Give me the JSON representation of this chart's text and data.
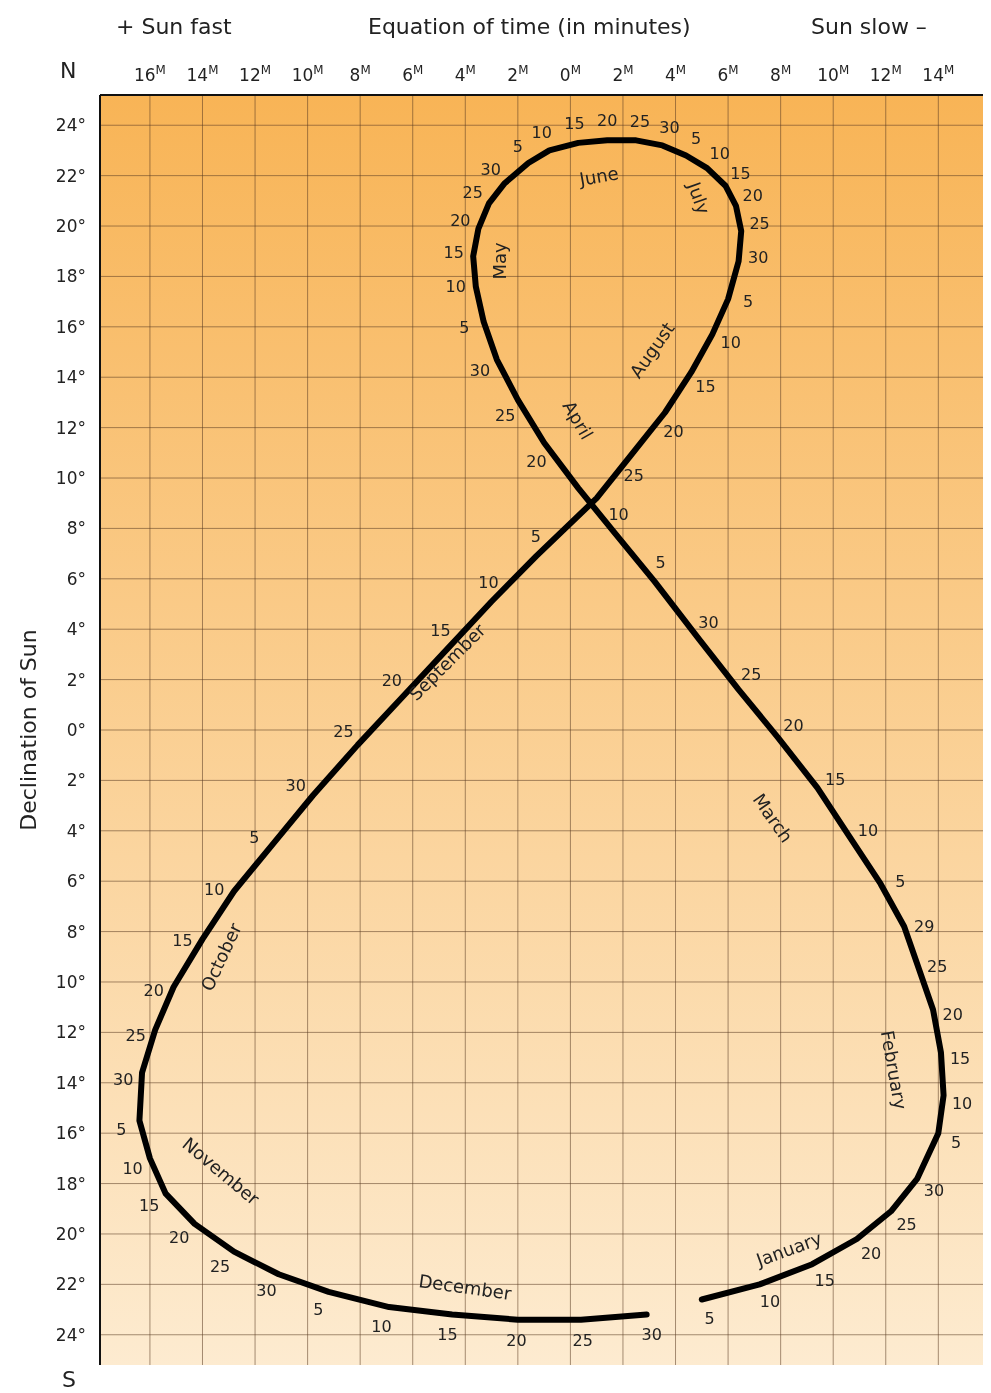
{
  "chart_data": {
    "type": "line",
    "xlabel": "Equation of time (in minutes)",
    "ylabel": "Declination of Sun",
    "annotations": [
      "+ Sun fast",
      "Sun slow –",
      "N",
      "S",
      "January",
      "February",
      "March",
      "April",
      "May",
      "June",
      "July",
      "August",
      "September",
      "October",
      "November",
      "December",
      {
        "text": "5",
        "x": -5.0,
        "y": -22.6
      },
      {
        "text": "10",
        "x": -7.2,
        "y": -22.0
      },
      {
        "text": "15",
        "x": -9.2,
        "y": -21.2
      },
      {
        "text": "20",
        "x": -10.9,
        "y": -20.2
      },
      {
        "text": "25",
        "x": -12.2,
        "y": -19.1
      },
      {
        "text": "30",
        "x": -13.2,
        "y": -17.8
      },
      {
        "text": "5",
        "x": -14.0,
        "y": -16.0
      },
      {
        "text": "10",
        "x": -14.2,
        "y": -14.5
      },
      {
        "text": "15",
        "x": -14.1,
        "y": -12.8
      },
      {
        "text": "20",
        "x": -13.8,
        "y": -11.1
      },
      {
        "text": "25",
        "x": -13.2,
        "y": -9.3
      },
      {
        "text": "29",
        "x": -12.7,
        "y": -7.8
      },
      {
        "text": "5",
        "x": -11.8,
        "y": -6.1
      },
      {
        "text": "10",
        "x": -10.6,
        "y": -4.2
      },
      {
        "text": "15",
        "x": -9.4,
        "y": -2.3
      },
      {
        "text": "20",
        "x": -7.9,
        "y": -0.3
      },
      {
        "text": "25",
        "x": -6.4,
        "y": 1.6
      },
      {
        "text": "30",
        "x": -4.9,
        "y": 3.6
      },
      {
        "text": "5",
        "x": -3.2,
        "y": 5.9
      },
      {
        "text": "10",
        "x": -1.7,
        "y": 7.8
      },
      {
        "text": "20",
        "x": 1.0,
        "y": 11.4
      },
      {
        "text": "25",
        "x": 2.0,
        "y": 13.1
      },
      {
        "text": "30",
        "x": 2.8,
        "y": 14.7
      },
      {
        "text": "5",
        "x": 3.3,
        "y": 16.2
      },
      {
        "text": "10",
        "x": 3.6,
        "y": 17.6
      },
      {
        "text": "15",
        "x": 3.7,
        "y": 18.8
      },
      {
        "text": "20",
        "x": 3.5,
        "y": 19.9
      },
      {
        "text": "25",
        "x": 3.1,
        "y": 20.9
      },
      {
        "text": "30",
        "x": 2.5,
        "y": 21.7
      },
      {
        "text": "5",
        "x": 1.6,
        "y": 22.5
      },
      {
        "text": "10",
        "x": 0.8,
        "y": 23.0
      },
      {
        "text": "15",
        "x": -0.3,
        "y": 23.3
      },
      {
        "text": "20",
        "x": -1.4,
        "y": 23.4
      },
      {
        "text": "25",
        "x": -2.5,
        "y": 23.4
      },
      {
        "text": "30",
        "x": -3.5,
        "y": 23.2
      },
      {
        "text": "5",
        "x": -4.4,
        "y": 22.8
      },
      {
        "text": "10",
        "x": -5.2,
        "y": 22.3
      },
      {
        "text": "15",
        "x": -5.9,
        "y": 21.6
      },
      {
        "text": "20",
        "x": -6.3,
        "y": 20.8
      },
      {
        "text": "25",
        "x": -6.5,
        "y": 19.8
      },
      {
        "text": "30",
        "x": -6.4,
        "y": 18.6
      },
      {
        "text": "5",
        "x": -6.0,
        "y": 17.1
      },
      {
        "text": "10",
        "x": -5.4,
        "y": 15.7
      },
      {
        "text": "15",
        "x": -4.6,
        "y": 14.2
      },
      {
        "text": "20",
        "x": -3.6,
        "y": 12.6
      },
      {
        "text": "25",
        "x": -2.3,
        "y": 10.9
      },
      {
        "text": "5",
        "x": 1.3,
        "y": 6.9
      },
      {
        "text": "10",
        "x": 3.0,
        "y": 5.1
      },
      {
        "text": "15",
        "x": 4.7,
        "y": 3.2
      },
      {
        "text": "20",
        "x": 6.4,
        "y": 1.3
      },
      {
        "text": "25",
        "x": 8.1,
        "y": -0.6
      },
      {
        "text": "30",
        "x": 9.8,
        "y": -2.6
      },
      {
        "text": "5",
        "x": 11.3,
        "y": -4.5
      },
      {
        "text": "10",
        "x": 12.8,
        "y": -6.4
      },
      {
        "text": "15",
        "x": 14.0,
        "y": -8.3
      },
      {
        "text": "20",
        "x": 15.1,
        "y": -10.2
      },
      {
        "text": "25",
        "x": 15.8,
        "y": -11.9
      },
      {
        "text": "30",
        "x": 16.3,
        "y": -13.6
      },
      {
        "text": "5",
        "x": 16.4,
        "y": -15.5
      },
      {
        "text": "10",
        "x": 16.0,
        "y": -17.0
      },
      {
        "text": "15",
        "x": 15.4,
        "y": -18.4
      },
      {
        "text": "20",
        "x": 14.3,
        "y": -19.6
      },
      {
        "text": "25",
        "x": 12.8,
        "y": -20.7
      },
      {
        "text": "30",
        "x": 11.1,
        "y": -21.6
      },
      {
        "text": "5",
        "x": 9.2,
        "y": -22.3
      },
      {
        "text": "10",
        "x": 6.9,
        "y": -22.9
      },
      {
        "text": "15",
        "x": 4.5,
        "y": -23.2
      },
      {
        "text": "20",
        "x": 2.0,
        "y": -23.4
      },
      {
        "text": "25",
        "x": -0.4,
        "y": -23.4
      },
      {
        "text": "30",
        "x": -2.9,
        "y": -23.2
      }
    ],
    "xlim": [
      17.9,
      -15.7
    ],
    "xticks": [
      {
        "value": 16,
        "label": "16$^{M}$"
      },
      {
        "value": 14,
        "label": "14$^{M}$"
      },
      {
        "value": 12,
        "label": "12$^{M}$"
      },
      {
        "value": 10,
        "label": "10$^{M}$"
      },
      {
        "value": 8,
        "label": "8$^{M}$"
      },
      {
        "value": 6,
        "label": "6$^{M}$"
      },
      {
        "value": 4,
        "label": "4$^{M}$"
      },
      {
        "value": 2,
        "label": "2$^{M}$"
      },
      {
        "value": 0,
        "label": "0$^{M}$"
      },
      {
        "value": -2,
        "label": "2$^{M}$"
      },
      {
        "value": -4,
        "label": "4$^{M}$"
      },
      {
        "value": -6,
        "label": "6$^{M}$"
      },
      {
        "value": -8,
        "label": "8$^{M}$"
      },
      {
        "value": -10,
        "label": "10$^{M}$"
      },
      {
        "value": -12,
        "label": "12$^{M}$"
      },
      {
        "value": -14,
        "label": "14$^{M}$"
      }
    ],
    "ylim": [
      -25.2,
      25.2
    ],
    "yticks": [
      {
        "value": 24,
        "label": "24°"
      },
      {
        "value": 22,
        "label": "22°"
      },
      {
        "value": 20,
        "label": "20°"
      },
      {
        "value": 18,
        "label": "18°"
      },
      {
        "value": 16,
        "label": "16°"
      },
      {
        "value": 14,
        "label": "14°"
      },
      {
        "value": 12,
        "label": "12°"
      },
      {
        "value": 10,
        "label": "10°"
      },
      {
        "value": 8,
        "label": "8°"
      },
      {
        "value": 6,
        "label": "6°"
      },
      {
        "value": 4,
        "label": "4°"
      },
      {
        "value": 2,
        "label": "2°"
      },
      {
        "value": 0,
        "label": "0°"
      },
      {
        "value": -2,
        "label": "2°"
      },
      {
        "value": -4,
        "label": "4°"
      },
      {
        "value": -6,
        "label": "6°"
      },
      {
        "value": -8,
        "label": "8°"
      },
      {
        "value": -10,
        "label": "10°"
      },
      {
        "value": -12,
        "label": "12°"
      },
      {
        "value": -14,
        "label": "14°"
      },
      {
        "value": -16,
        "label": "16°"
      },
      {
        "value": -18,
        "label": "18°"
      },
      {
        "value": -20,
        "label": "20°"
      },
      {
        "value": -22,
        "label": "22°"
      },
      {
        "value": -24,
        "label": "24°"
      }
    ],
    "grid": true,
    "series": [
      {
        "color": "#000000",
        "x": [
          -5.0,
          -7.2,
          -9.2,
          -10.9,
          -12.2,
          -13.2,
          -14.0,
          -14.2,
          -14.1,
          -13.8,
          -13.2,
          -12.7,
          -11.8,
          -10.6,
          -9.4,
          -7.9,
          -6.4,
          -4.9,
          -3.2,
          -1.7,
          -0.3,
          1.0,
          2.0,
          2.8,
          3.3,
          3.6,
          3.7,
          3.5,
          3.1,
          2.5,
          1.6,
          0.8,
          -0.3,
          -1.4,
          -2.5,
          -3.5,
          -4.4,
          -5.2,
          -5.9,
          -6.3,
          -6.5,
          -6.4,
          -6.0,
          -5.4,
          -4.6,
          -3.6,
          -2.3,
          -1.0,
          1.3,
          3.0,
          4.7,
          6.4,
          8.1,
          9.8,
          11.3,
          12.8,
          14.0,
          15.1,
          15.8,
          16.3,
          16.4,
          16.0,
          15.4,
          14.3,
          12.8,
          11.1,
          9.2,
          6.9,
          4.5,
          2.0,
          -0.4,
          -2.9
        ],
        "values": [
          -22.6,
          -22.0,
          -21.2,
          -20.2,
          -19.1,
          -17.8,
          -16.0,
          -14.5,
          -12.8,
          -11.1,
          -9.3,
          -7.8,
          -6.1,
          -4.2,
          -2.3,
          -0.3,
          1.6,
          3.6,
          5.9,
          7.8,
          9.6,
          11.4,
          13.1,
          14.7,
          16.2,
          17.6,
          18.8,
          19.9,
          20.9,
          21.7,
          22.5,
          23.0,
          23.3,
          23.4,
          23.4,
          23.2,
          22.8,
          22.3,
          21.6,
          20.8,
          19.8,
          18.6,
          17.1,
          15.7,
          14.2,
          12.6,
          10.9,
          9.2,
          6.9,
          5.1,
          3.2,
          1.3,
          -0.6,
          -2.6,
          -4.5,
          -6.4,
          -8.3,
          -10.2,
          -11.9,
          -13.6,
          -15.5,
          -17.0,
          -18.4,
          -19.6,
          -20.7,
          -21.6,
          -22.3,
          -22.9,
          -23.2,
          -23.4,
          -23.4,
          -23.2
        ]
      }
    ]
  }
}
